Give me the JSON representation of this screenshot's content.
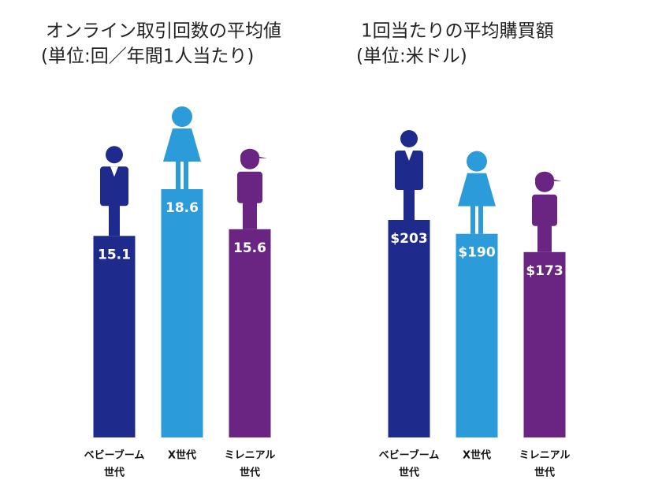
{
  "chart_data": [
    {
      "type": "bar",
      "title": "オンライン取引回数の平均値",
      "subtitle": "(単位:回／年間1人当たり)",
      "categories": [
        [
          "ベビーブーム",
          "世代"
        ],
        [
          "X世代"
        ],
        [
          "ミレニアル",
          "世代"
        ]
      ],
      "values": [
        15.1,
        18.6,
        15.6
      ],
      "colors": [
        "#1f2b8c",
        "#2b9bd9",
        "#6a2482"
      ]
    },
    {
      "type": "bar",
      "title": "1回当たりの平均購買額",
      "subtitle": "(単位:米ドル)",
      "categories": [
        [
          "ベビーブーム",
          "世代"
        ],
        [
          "X世代"
        ],
        [
          "ミレニアル",
          "世代"
        ]
      ],
      "values": [
        203,
        190,
        173
      ],
      "value_labels": [
        "$203",
        "$190",
        "$173"
      ],
      "colors": [
        "#1f2b8c",
        "#2b9bd9",
        "#6a2482"
      ]
    }
  ]
}
